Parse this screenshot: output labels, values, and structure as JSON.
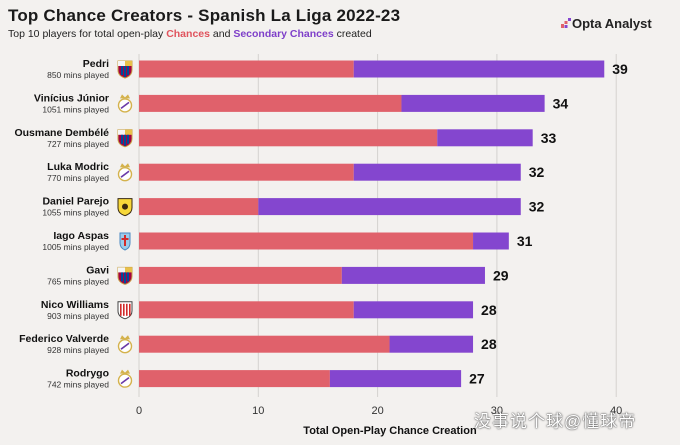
{
  "header": {
    "title": "Top Chance Creators - Spanish La Liga 2022-23",
    "subtitle_prefix": "Top 10 players for total open-play ",
    "subtitle_chances": "Chances",
    "subtitle_and": " and ",
    "subtitle_secondary": "Secondary Chances",
    "subtitle_suffix": " created",
    "brand": "Opta Analyst"
  },
  "watermark": "没事说个球@懂球帝",
  "colors": {
    "chances": "#e0616b",
    "secondary": "#8446cf",
    "background": "#f3f1ef",
    "grid": "#d4d2cf"
  },
  "chart_data": {
    "type": "bar",
    "orientation": "horizontal",
    "stacked": true,
    "title": "Top Chance Creators - Spanish La Liga 2022-23",
    "xlabel": "Total Open-Play Chance Creation",
    "xlim": [
      0,
      42
    ],
    "xticks": [
      0,
      10,
      20,
      30,
      40
    ],
    "grid": true,
    "players": [
      {
        "name": "Pedri",
        "mins": "850 mins played",
        "club_icon": "barcelona-crest-icon",
        "chances": 18,
        "secondary": 21,
        "total": 39
      },
      {
        "name": "Vinícius Júnior",
        "mins": "1051 mins played",
        "club_icon": "real-madrid-crest-icon",
        "chances": 22,
        "secondary": 12,
        "total": 34
      },
      {
        "name": "Ousmane Dembélé",
        "mins": "727 mins played",
        "club_icon": "barcelona-crest-icon",
        "chances": 25,
        "secondary": 8,
        "total": 33
      },
      {
        "name": "Luka Modric",
        "mins": "770 mins played",
        "club_icon": "real-madrid-crest-icon",
        "chances": 18,
        "secondary": 14,
        "total": 32
      },
      {
        "name": "Daniel Parejo",
        "mins": "1055 mins played",
        "club_icon": "villarreal-crest-icon",
        "chances": 10,
        "secondary": 22,
        "total": 32
      },
      {
        "name": "Iago Aspas",
        "mins": "1005 mins played",
        "club_icon": "celta-crest-icon",
        "chances": 28,
        "secondary": 3,
        "total": 31
      },
      {
        "name": "Gavi",
        "mins": "765 mins played",
        "club_icon": "barcelona-crest-icon",
        "chances": 17,
        "secondary": 12,
        "total": 29
      },
      {
        "name": "Nico Williams",
        "mins": "903 mins played",
        "club_icon": "athletic-crest-icon",
        "chances": 18,
        "secondary": 10,
        "total": 28
      },
      {
        "name": "Federico Valverde",
        "mins": "928 mins played",
        "club_icon": "real-madrid-crest-icon",
        "chances": 21,
        "secondary": 7,
        "total": 28
      },
      {
        "name": "Rodrygo",
        "mins": "742 mins played",
        "club_icon": "real-madrid-crest-icon",
        "chances": 16,
        "secondary": 11,
        "total": 27
      }
    ]
  }
}
